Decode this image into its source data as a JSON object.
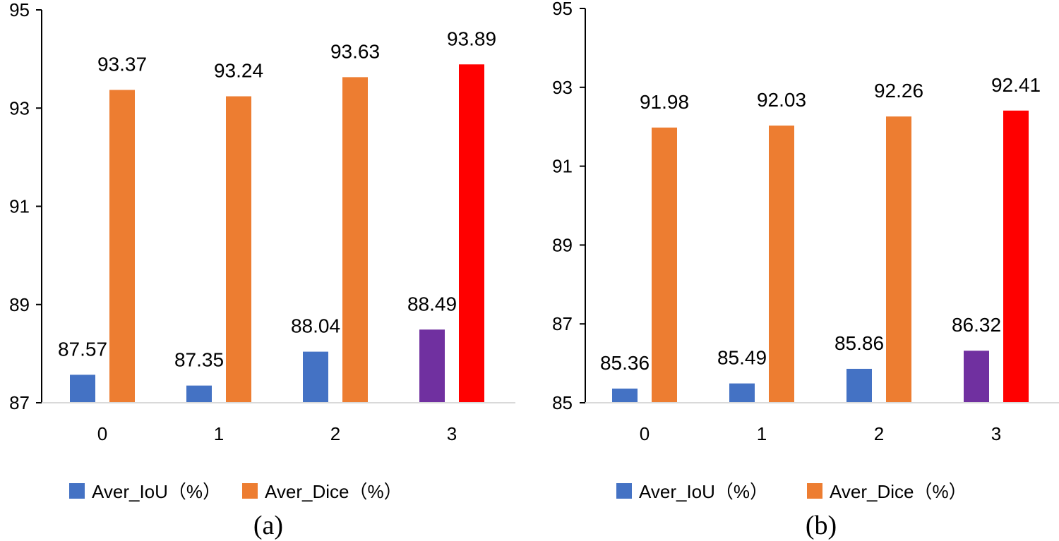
{
  "colors": {
    "iou": "#4472C4",
    "dice": "#ED7D31",
    "best_iou": "#7030A0",
    "best_dice": "#FF0000",
    "axis": "#000000"
  },
  "legend": {
    "iou_label": "Aver_IoU（%）",
    "dice_label": "Aver_Dice（%）"
  },
  "chart_data": [
    {
      "type": "bar",
      "caption": "(a)",
      "categories": [
        "0",
        "1",
        "2",
        "3"
      ],
      "ylim": [
        87,
        95
      ],
      "yticks": [
        "87",
        "89",
        "91",
        "93",
        "95"
      ],
      "series": [
        {
          "name": "Aver_IoU（%）",
          "values": [
            87.57,
            87.35,
            88.04,
            88.49
          ],
          "labels": [
            "87.57",
            "87.35",
            "88.04",
            "88.49"
          ]
        },
        {
          "name": "Aver_Dice（%）",
          "values": [
            93.37,
            93.24,
            93.63,
            93.89
          ],
          "labels": [
            "93.37",
            "93.24",
            "93.63",
            "93.89"
          ]
        }
      ],
      "highlight_category_index": 3
    },
    {
      "type": "bar",
      "caption": "(b)",
      "categories": [
        "0",
        "1",
        "2",
        "3"
      ],
      "ylim": [
        85,
        95
      ],
      "yticks": [
        "85",
        "87",
        "89",
        "91",
        "93",
        "95"
      ],
      "series": [
        {
          "name": "Aver_IoU（%）",
          "values": [
            85.36,
            85.49,
            85.86,
            86.32
          ],
          "labels": [
            "85.36",
            "85.49",
            "85.86",
            "86.32"
          ]
        },
        {
          "name": "Aver_Dice（%）",
          "values": [
            91.98,
            92.03,
            92.26,
            92.41
          ],
          "labels": [
            "91.98",
            "92.03",
            "92.26",
            "92.41"
          ]
        }
      ],
      "highlight_category_index": 3
    }
  ]
}
